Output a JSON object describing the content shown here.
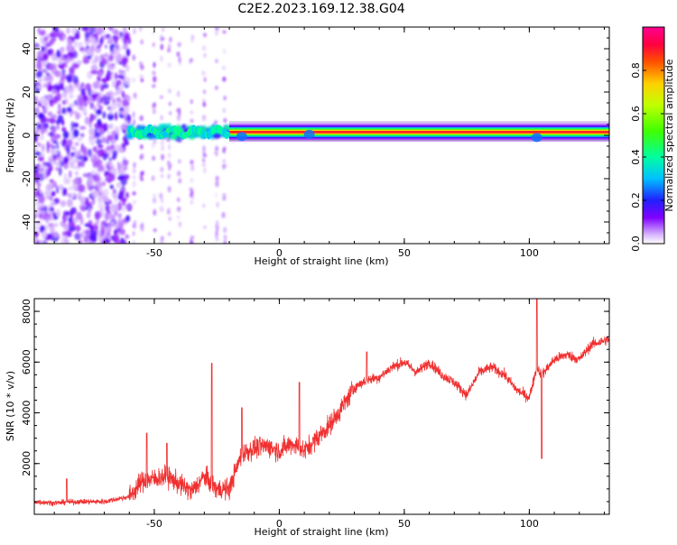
{
  "title": "C2E2.2023.169.12.38.G04",
  "chart_data": [
    {
      "type": "heatmap",
      "xlabel": "Height of straight line (km)",
      "ylabel": "Frequency (Hz)",
      "xlim": [
        -98,
        132
      ],
      "ylim": [
        -50,
        50
      ],
      "xticks": [
        -50,
        0,
        50,
        100
      ],
      "yticks": [
        -40,
        -20,
        0,
        20,
        40
      ],
      "colorbar": {
        "label": "Normalized spectral amplitude",
        "range": [
          0,
          1
        ],
        "ticks": [
          0.0,
          0.2,
          0.4,
          0.6,
          0.8
        ],
        "tick_labels": [
          "0.0",
          "0.2",
          "0.4",
          "0.6",
          "0.8"
        ]
      },
      "description_values": {
        "carrier_frequency_hz": 1.5,
        "noise_region_x": [
          -98,
          -60
        ],
        "transition_region_x": [
          -60,
          -20
        ],
        "stable_carrier_x": [
          -20,
          132
        ]
      }
    },
    {
      "type": "line",
      "xlabel": "Height of straight line (km)",
      "ylabel": "SNR (10 * v/v)",
      "xlim": [
        -98,
        132
      ],
      "ylim": [
        0,
        8500
      ],
      "xticks": [
        -50,
        0,
        50,
        100
      ],
      "yticks": [
        2000,
        4000,
        6000,
        8000
      ],
      "color": "#f03030",
      "trend": [
        {
          "x": -98,
          "y": 500
        },
        {
          "x": -90,
          "y": 450
        },
        {
          "x": -80,
          "y": 500
        },
        {
          "x": -70,
          "y": 500
        },
        {
          "x": -60,
          "y": 700
        },
        {
          "x": -55,
          "y": 1300
        },
        {
          "x": -50,
          "y": 1400
        },
        {
          "x": -45,
          "y": 1500
        },
        {
          "x": -40,
          "y": 1200
        },
        {
          "x": -35,
          "y": 900
        },
        {
          "x": -30,
          "y": 1500
        },
        {
          "x": -25,
          "y": 1000
        },
        {
          "x": -20,
          "y": 1000
        },
        {
          "x": -15,
          "y": 2400
        },
        {
          "x": -10,
          "y": 2600
        },
        {
          "x": -5,
          "y": 2700
        },
        {
          "x": 0,
          "y": 2500
        },
        {
          "x": 5,
          "y": 2800
        },
        {
          "x": 10,
          "y": 2500
        },
        {
          "x": 15,
          "y": 3000
        },
        {
          "x": 20,
          "y": 3500
        },
        {
          "x": 25,
          "y": 4200
        },
        {
          "x": 30,
          "y": 5000
        },
        {
          "x": 35,
          "y": 5300
        },
        {
          "x": 40,
          "y": 5400
        },
        {
          "x": 45,
          "y": 5800
        },
        {
          "x": 50,
          "y": 6000
        },
        {
          "x": 55,
          "y": 5600
        },
        {
          "x": 60,
          "y": 6000
        },
        {
          "x": 65,
          "y": 5500
        },
        {
          "x": 70,
          "y": 5200
        },
        {
          "x": 75,
          "y": 4700
        },
        {
          "x": 80,
          "y": 5600
        },
        {
          "x": 85,
          "y": 5800
        },
        {
          "x": 90,
          "y": 5500
        },
        {
          "x": 95,
          "y": 4900
        },
        {
          "x": 100,
          "y": 4600
        },
        {
          "x": 103,
          "y": 5800
        },
        {
          "x": 105,
          "y": 5500
        },
        {
          "x": 110,
          "y": 6100
        },
        {
          "x": 115,
          "y": 6300
        },
        {
          "x": 120,
          "y": 6100
        },
        {
          "x": 125,
          "y": 6700
        },
        {
          "x": 132,
          "y": 6900
        }
      ],
      "spikes": [
        {
          "x": -85,
          "y": 1400
        },
        {
          "x": -53,
          "y": 3200
        },
        {
          "x": -45,
          "y": 2800
        },
        {
          "x": -27,
          "y": 5950
        },
        {
          "x": -15,
          "y": 4200
        },
        {
          "x": 8,
          "y": 5200
        },
        {
          "x": 35,
          "y": 6400
        },
        {
          "x": 103,
          "y": 8500
        },
        {
          "x": 105,
          "y": 2200
        }
      ]
    }
  ]
}
